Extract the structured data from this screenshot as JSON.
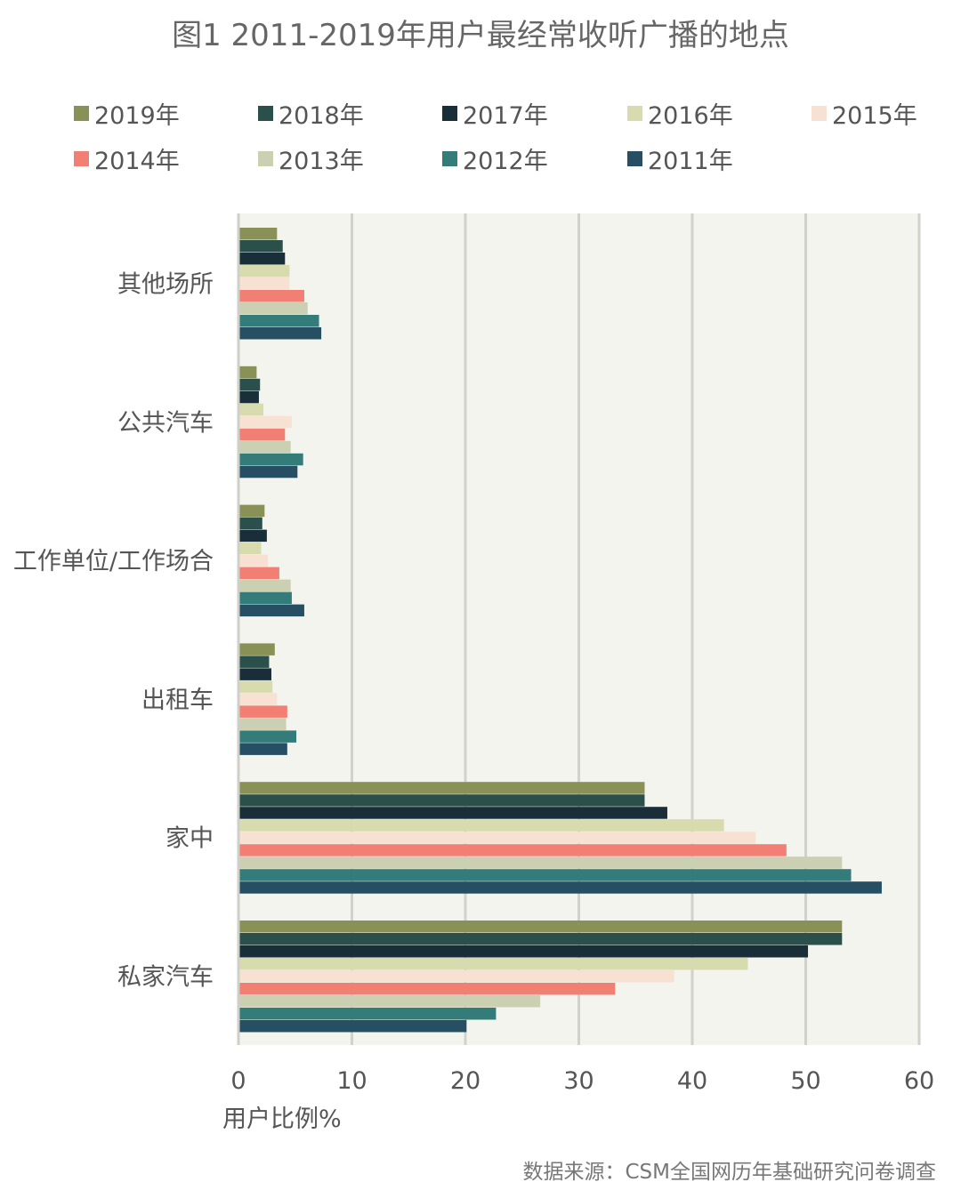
{
  "chart_data": {
    "type": "bar",
    "orientation": "horizontal",
    "title": "图1 2011-2019年用户最经常收听广播的地点",
    "xlabel": "用户比例%",
    "ylabel": "",
    "xlim": [
      0,
      60
    ],
    "xticks": [
      "0",
      "10",
      "20",
      "30",
      "40",
      "50",
      "60"
    ],
    "grid": true,
    "legend_position": "top",
    "categories": [
      "其他场所",
      "公共汽车",
      "工作单位/工作场合",
      "出租车",
      "家中",
      "私家汽车"
    ],
    "series": [
      {
        "name": "2019年",
        "color": "#8a9157",
        "values": [
          3.4,
          1.6,
          2.3,
          3.2,
          35.8,
          53.2
        ]
      },
      {
        "name": "2018年",
        "color": "#2b4f4a",
        "values": [
          3.9,
          1.9,
          2.1,
          2.7,
          35.8,
          53.2
        ]
      },
      {
        "name": "2017年",
        "color": "#1a2e3a",
        "values": [
          4.1,
          1.8,
          2.5,
          2.9,
          37.8,
          50.2
        ]
      },
      {
        "name": "2016年",
        "color": "#d7dbad",
        "values": [
          4.5,
          2.2,
          2.0,
          3.0,
          42.8,
          44.9
        ]
      },
      {
        "name": "2015年",
        "color": "#f7e1d3",
        "values": [
          4.5,
          4.7,
          2.6,
          3.4,
          45.6,
          38.4
        ]
      },
      {
        "name": "2014年",
        "color": "#f17f74",
        "values": [
          5.8,
          4.1,
          3.6,
          4.3,
          48.3,
          33.2
        ]
      },
      {
        "name": "2013年",
        "color": "#cbd0b3",
        "values": [
          6.1,
          4.6,
          4.6,
          4.2,
          53.2,
          26.6
        ]
      },
      {
        "name": "2012年",
        "color": "#347c7a",
        "values": [
          7.1,
          5.7,
          4.7,
          5.1,
          54.0,
          22.7
        ]
      },
      {
        "name": "2011年",
        "color": "#264f63",
        "values": [
          7.3,
          5.2,
          5.8,
          4.3,
          56.7,
          20.1
        ]
      }
    ]
  },
  "source": "数据来源：CSM全国网历年基础研究问卷调查"
}
